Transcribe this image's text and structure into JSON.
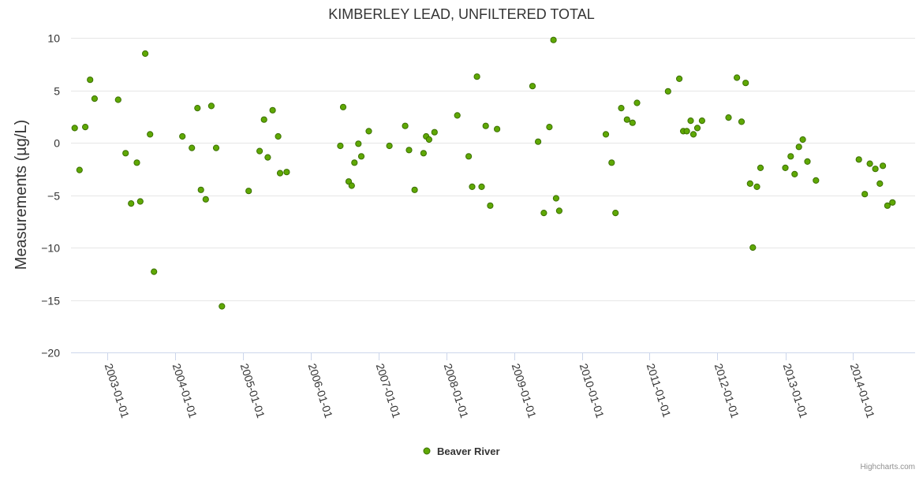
{
  "chart_data": {
    "type": "scatter",
    "title": "KIMBERLEY LEAD, UNFILTERED TOTAL",
    "ylabel": "Measurements (µg/L)",
    "xlabel": "",
    "ylim": [
      -20,
      10
    ],
    "yticks": [
      10,
      5,
      0,
      -5,
      -10,
      -15,
      -20
    ],
    "xlim": [
      "2002-06-20",
      "2014-12-01"
    ],
    "xticks": [
      "2003-01-01",
      "2004-01-01",
      "2005-01-01",
      "2006-01-01",
      "2007-01-01",
      "2008-01-01",
      "2009-01-01",
      "2010-01-01",
      "2011-01-01",
      "2012-01-01",
      "2013-01-01",
      "2014-01-01"
    ],
    "grid": true,
    "legend": "bottom-center",
    "series": [
      {
        "name": "Beaver River",
        "color": "#5fa804",
        "points": [
          [
            "2002-07-10",
            1.4
          ],
          [
            "2002-08-05",
            -2.6
          ],
          [
            "2002-09-05",
            1.5
          ],
          [
            "2002-10-01",
            6.0
          ],
          [
            "2002-10-25",
            4.2
          ],
          [
            "2003-03-01",
            4.1
          ],
          [
            "2003-04-10",
            -1.0
          ],
          [
            "2003-05-10",
            -5.8
          ],
          [
            "2003-06-10",
            -1.9
          ],
          [
            "2003-06-28",
            -5.6
          ],
          [
            "2003-07-25",
            8.5
          ],
          [
            "2003-08-20",
            0.8
          ],
          [
            "2003-09-10",
            -12.3
          ],
          [
            "2004-02-10",
            0.6
          ],
          [
            "2004-04-01",
            -0.5
          ],
          [
            "2004-05-01",
            3.3
          ],
          [
            "2004-05-20",
            -4.5
          ],
          [
            "2004-06-15",
            -5.4
          ],
          [
            "2004-07-15",
            3.5
          ],
          [
            "2004-08-10",
            -0.5
          ],
          [
            "2004-09-10",
            -15.6
          ],
          [
            "2005-02-01",
            -4.6
          ],
          [
            "2005-04-01",
            -0.8
          ],
          [
            "2005-04-25",
            2.2
          ],
          [
            "2005-05-15",
            -1.4
          ],
          [
            "2005-06-10",
            3.1
          ],
          [
            "2005-07-10",
            0.6
          ],
          [
            "2005-07-20",
            -2.9
          ],
          [
            "2005-08-25",
            -2.8
          ],
          [
            "2006-06-10",
            -0.3
          ],
          [
            "2006-06-25",
            3.4
          ],
          [
            "2006-07-25",
            -3.7
          ],
          [
            "2006-08-10",
            -4.1
          ],
          [
            "2006-08-25",
            -1.9
          ],
          [
            "2006-09-15",
            -0.1
          ],
          [
            "2006-10-01",
            -1.3
          ],
          [
            "2006-11-10",
            1.1
          ],
          [
            "2007-03-01",
            -0.3
          ],
          [
            "2007-05-25",
            1.6
          ],
          [
            "2007-06-15",
            -0.7
          ],
          [
            "2007-07-15",
            -4.5
          ],
          [
            "2007-09-01",
            -1.0
          ],
          [
            "2007-09-15",
            0.6
          ],
          [
            "2007-10-01",
            0.3
          ],
          [
            "2007-10-30",
            1.0
          ],
          [
            "2008-03-01",
            2.6
          ],
          [
            "2008-05-01",
            -1.3
          ],
          [
            "2008-05-20",
            -4.2
          ],
          [
            "2008-06-15",
            6.3
          ],
          [
            "2008-07-10",
            -4.2
          ],
          [
            "2008-08-01",
            1.6
          ],
          [
            "2008-08-25",
            -6.0
          ],
          [
            "2008-10-01",
            1.3
          ],
          [
            "2009-04-10",
            5.4
          ],
          [
            "2009-05-10",
            0.1
          ],
          [
            "2009-06-10",
            -6.7
          ],
          [
            "2009-07-10",
            1.5
          ],
          [
            "2009-08-01",
            9.8
          ],
          [
            "2009-08-15",
            -5.3
          ],
          [
            "2009-09-01",
            -6.5
          ],
          [
            "2010-05-10",
            0.8
          ],
          [
            "2010-06-10",
            -1.9
          ],
          [
            "2010-07-01",
            -6.7
          ],
          [
            "2010-08-01",
            3.3
          ],
          [
            "2010-09-01",
            2.2
          ],
          [
            "2010-10-01",
            1.9
          ],
          [
            "2010-10-25",
            3.8
          ],
          [
            "2011-04-10",
            4.9
          ],
          [
            "2011-06-10",
            6.1
          ],
          [
            "2011-07-01",
            1.1
          ],
          [
            "2011-07-20",
            1.1
          ],
          [
            "2011-08-10",
            2.1
          ],
          [
            "2011-08-25",
            0.8
          ],
          [
            "2011-09-15",
            1.4
          ],
          [
            "2011-10-10",
            2.1
          ],
          [
            "2012-03-01",
            2.4
          ],
          [
            "2012-04-15",
            6.2
          ],
          [
            "2012-05-10",
            2.0
          ],
          [
            "2012-06-01",
            5.7
          ],
          [
            "2012-06-25",
            -3.9
          ],
          [
            "2012-07-10",
            -10.0
          ],
          [
            "2012-08-01",
            -4.2
          ],
          [
            "2012-08-20",
            -2.4
          ],
          [
            "2013-01-01",
            -2.4
          ],
          [
            "2013-01-30",
            -1.3
          ],
          [
            "2013-02-20",
            -3.0
          ],
          [
            "2013-03-15",
            -0.4
          ],
          [
            "2013-04-05",
            0.3
          ],
          [
            "2013-04-30",
            -1.8
          ],
          [
            "2013-06-15",
            -3.6
          ],
          [
            "2014-02-01",
            -1.6
          ],
          [
            "2014-03-05",
            -4.9
          ],
          [
            "2014-04-01",
            -2.0
          ],
          [
            "2014-05-01",
            -2.5
          ],
          [
            "2014-05-25",
            -3.9
          ],
          [
            "2014-06-10",
            -2.2
          ],
          [
            "2014-07-05",
            -6.0
          ],
          [
            "2014-08-01",
            -5.7
          ]
        ]
      }
    ],
    "credits": "Highcharts.com"
  }
}
